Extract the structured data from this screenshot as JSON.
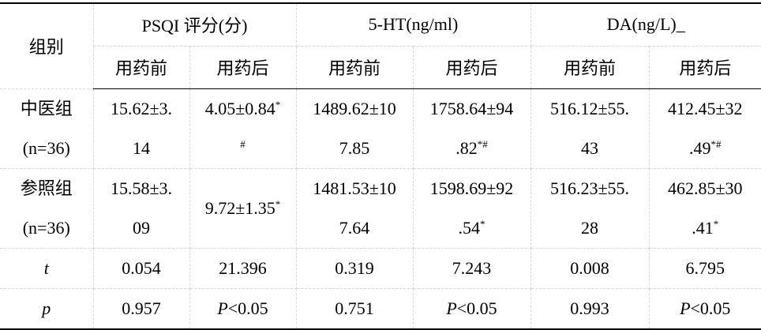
{
  "table": {
    "header": {
      "first": "组别",
      "groups": [
        "PSQI 评分(分)",
        "5-HT(ng/ml)",
        "DA(ng/L)_"
      ],
      "sub": [
        "用药前",
        "用药后",
        "用药前",
        "用药后",
        "用药前",
        "用药后"
      ]
    },
    "rows": [
      [
        [
          "中医组",
          "(n=36)"
        ],
        [
          "15.62±3.",
          "14"
        ],
        [
          {
            "text": "4.05±0.84",
            "sup": "*"
          },
          {
            "sup": "#"
          }
        ],
        [
          "1489.62±10",
          "7.85"
        ],
        [
          "1758.64±94",
          {
            "text": ".82",
            "sup": "*#"
          }
        ],
        [
          "516.12±55.",
          "43"
        ],
        [
          "412.45±32",
          {
            "text": ".49",
            "sup": "*#"
          }
        ]
      ],
      [
        [
          "参照组",
          "(n=36)"
        ],
        [
          "15.58±3.",
          "09"
        ],
        [
          {
            "text": "9.72±1.35",
            "sup": "*"
          }
        ],
        [
          "1481.53±10",
          "7.64"
        ],
        [
          "1598.69±92",
          {
            "text": ".54",
            "sup": "*"
          }
        ],
        [
          "516.23±55.",
          "28"
        ],
        [
          "462.85±30",
          {
            "text": ".41",
            "sup": "*"
          }
        ]
      ],
      [
        [
          {
            "italic": "t"
          }
        ],
        [
          "0.054"
        ],
        [
          "21.396"
        ],
        [
          "0.319"
        ],
        [
          "7.243"
        ],
        [
          "0.008"
        ],
        [
          "6.795"
        ]
      ],
      [
        [
          {
            "italic": "p"
          }
        ],
        [
          "0.957"
        ],
        [
          {
            "italic": "P",
            "text": "<0.05"
          }
        ],
        [
          "0.751"
        ],
        [
          {
            "italic": "P",
            "text": "<0.05"
          }
        ],
        [
          "0.993"
        ],
        [
          {
            "italic": "P",
            "text": "<0.05"
          }
        ]
      ]
    ]
  }
}
